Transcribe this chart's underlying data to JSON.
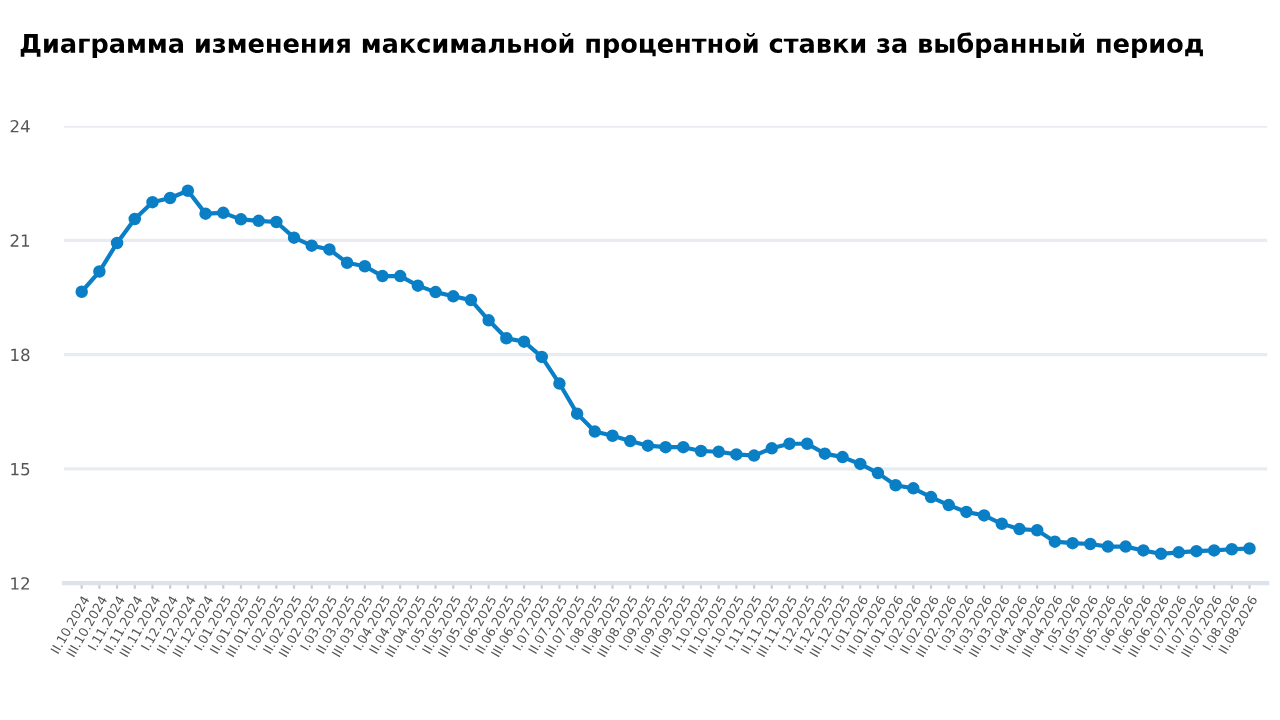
{
  "chart_data": {
    "type": "line",
    "title": "Диаграмма изменения максимальной процентной ставки за выбранный период",
    "categories": [
      "II.10.2024",
      "III.10.2024",
      "I.11.2024",
      "II.11.2024",
      "III.11.2024",
      "I.12.2024",
      "II.12.2024",
      "III.12.2024",
      "I.01.2025",
      "II.01.2025",
      "III.01.2025",
      "I.02.2025",
      "II.02.2025",
      "III.02.2025",
      "I.03.2025",
      "II.03.2025",
      "III.03.2025",
      "I.04.2025",
      "II.04.2025",
      "III.04.2025",
      "I.05.2025",
      "II.05.2025",
      "III.05.2025",
      "I.06.2025",
      "II.06.2025",
      "III.06.2025",
      "I.07.2025",
      "II.07.2025",
      "III.07.2025",
      "I.08.2025",
      "II.08.2025",
      "III.08.2025",
      "I.09.2025",
      "II.09.2025",
      "III.09.2025",
      "I.10.2025",
      "II.10.2025",
      "III.10.2025",
      "I.11.2025",
      "II.11.2025",
      "III.11.2025",
      "I.12.2025",
      "II.12.2025",
      "III.12.2025",
      "I.01.2026",
      "II.01.2026",
      "III.01.2026",
      "I.02.2026",
      "II.02.2026",
      "III.02.2026",
      "I.03.2026",
      "II.03.2026",
      "III.03.2026",
      "I.04.2026",
      "II.04.2026",
      "III.04.2026",
      "I.05.2026",
      "II.05.2026",
      "III.05.2026",
      "I.06.2026",
      "II.06.2026",
      "III.06.2026",
      "I.07.2026",
      "II.07.2026",
      "III.07.2026",
      "I.08.2026",
      "II.08.2026"
    ],
    "series": [
      {
        "color": "#0a7fc6",
        "values": [
          19.65,
          20.18,
          20.93,
          21.56,
          22.0,
          22.11,
          22.3,
          21.7,
          21.72,
          21.55,
          21.51,
          21.48,
          21.07,
          20.86,
          20.76,
          20.41,
          20.32,
          20.06,
          20.06,
          19.81,
          19.64,
          19.53,
          19.43,
          18.9,
          18.43,
          18.34,
          17.94,
          17.24,
          16.45,
          15.98,
          15.87,
          15.73,
          15.61,
          15.57,
          15.57,
          15.47,
          15.45,
          15.38,
          15.35,
          15.54,
          15.66,
          15.66,
          15.4,
          15.31,
          15.13,
          14.89,
          14.57,
          14.49,
          14.26,
          14.05,
          13.87,
          13.78,
          13.56,
          13.42,
          13.39,
          13.09,
          13.05,
          13.03,
          12.96,
          12.96,
          12.86,
          12.77,
          12.81,
          12.84,
          12.86,
          12.89,
          12.91
        ]
      }
    ],
    "ylim": [
      12,
      24
    ],
    "yticks": [
      12,
      15,
      18,
      21,
      24
    ],
    "grid": "y",
    "marker": "circle",
    "line_style": "solid"
  }
}
